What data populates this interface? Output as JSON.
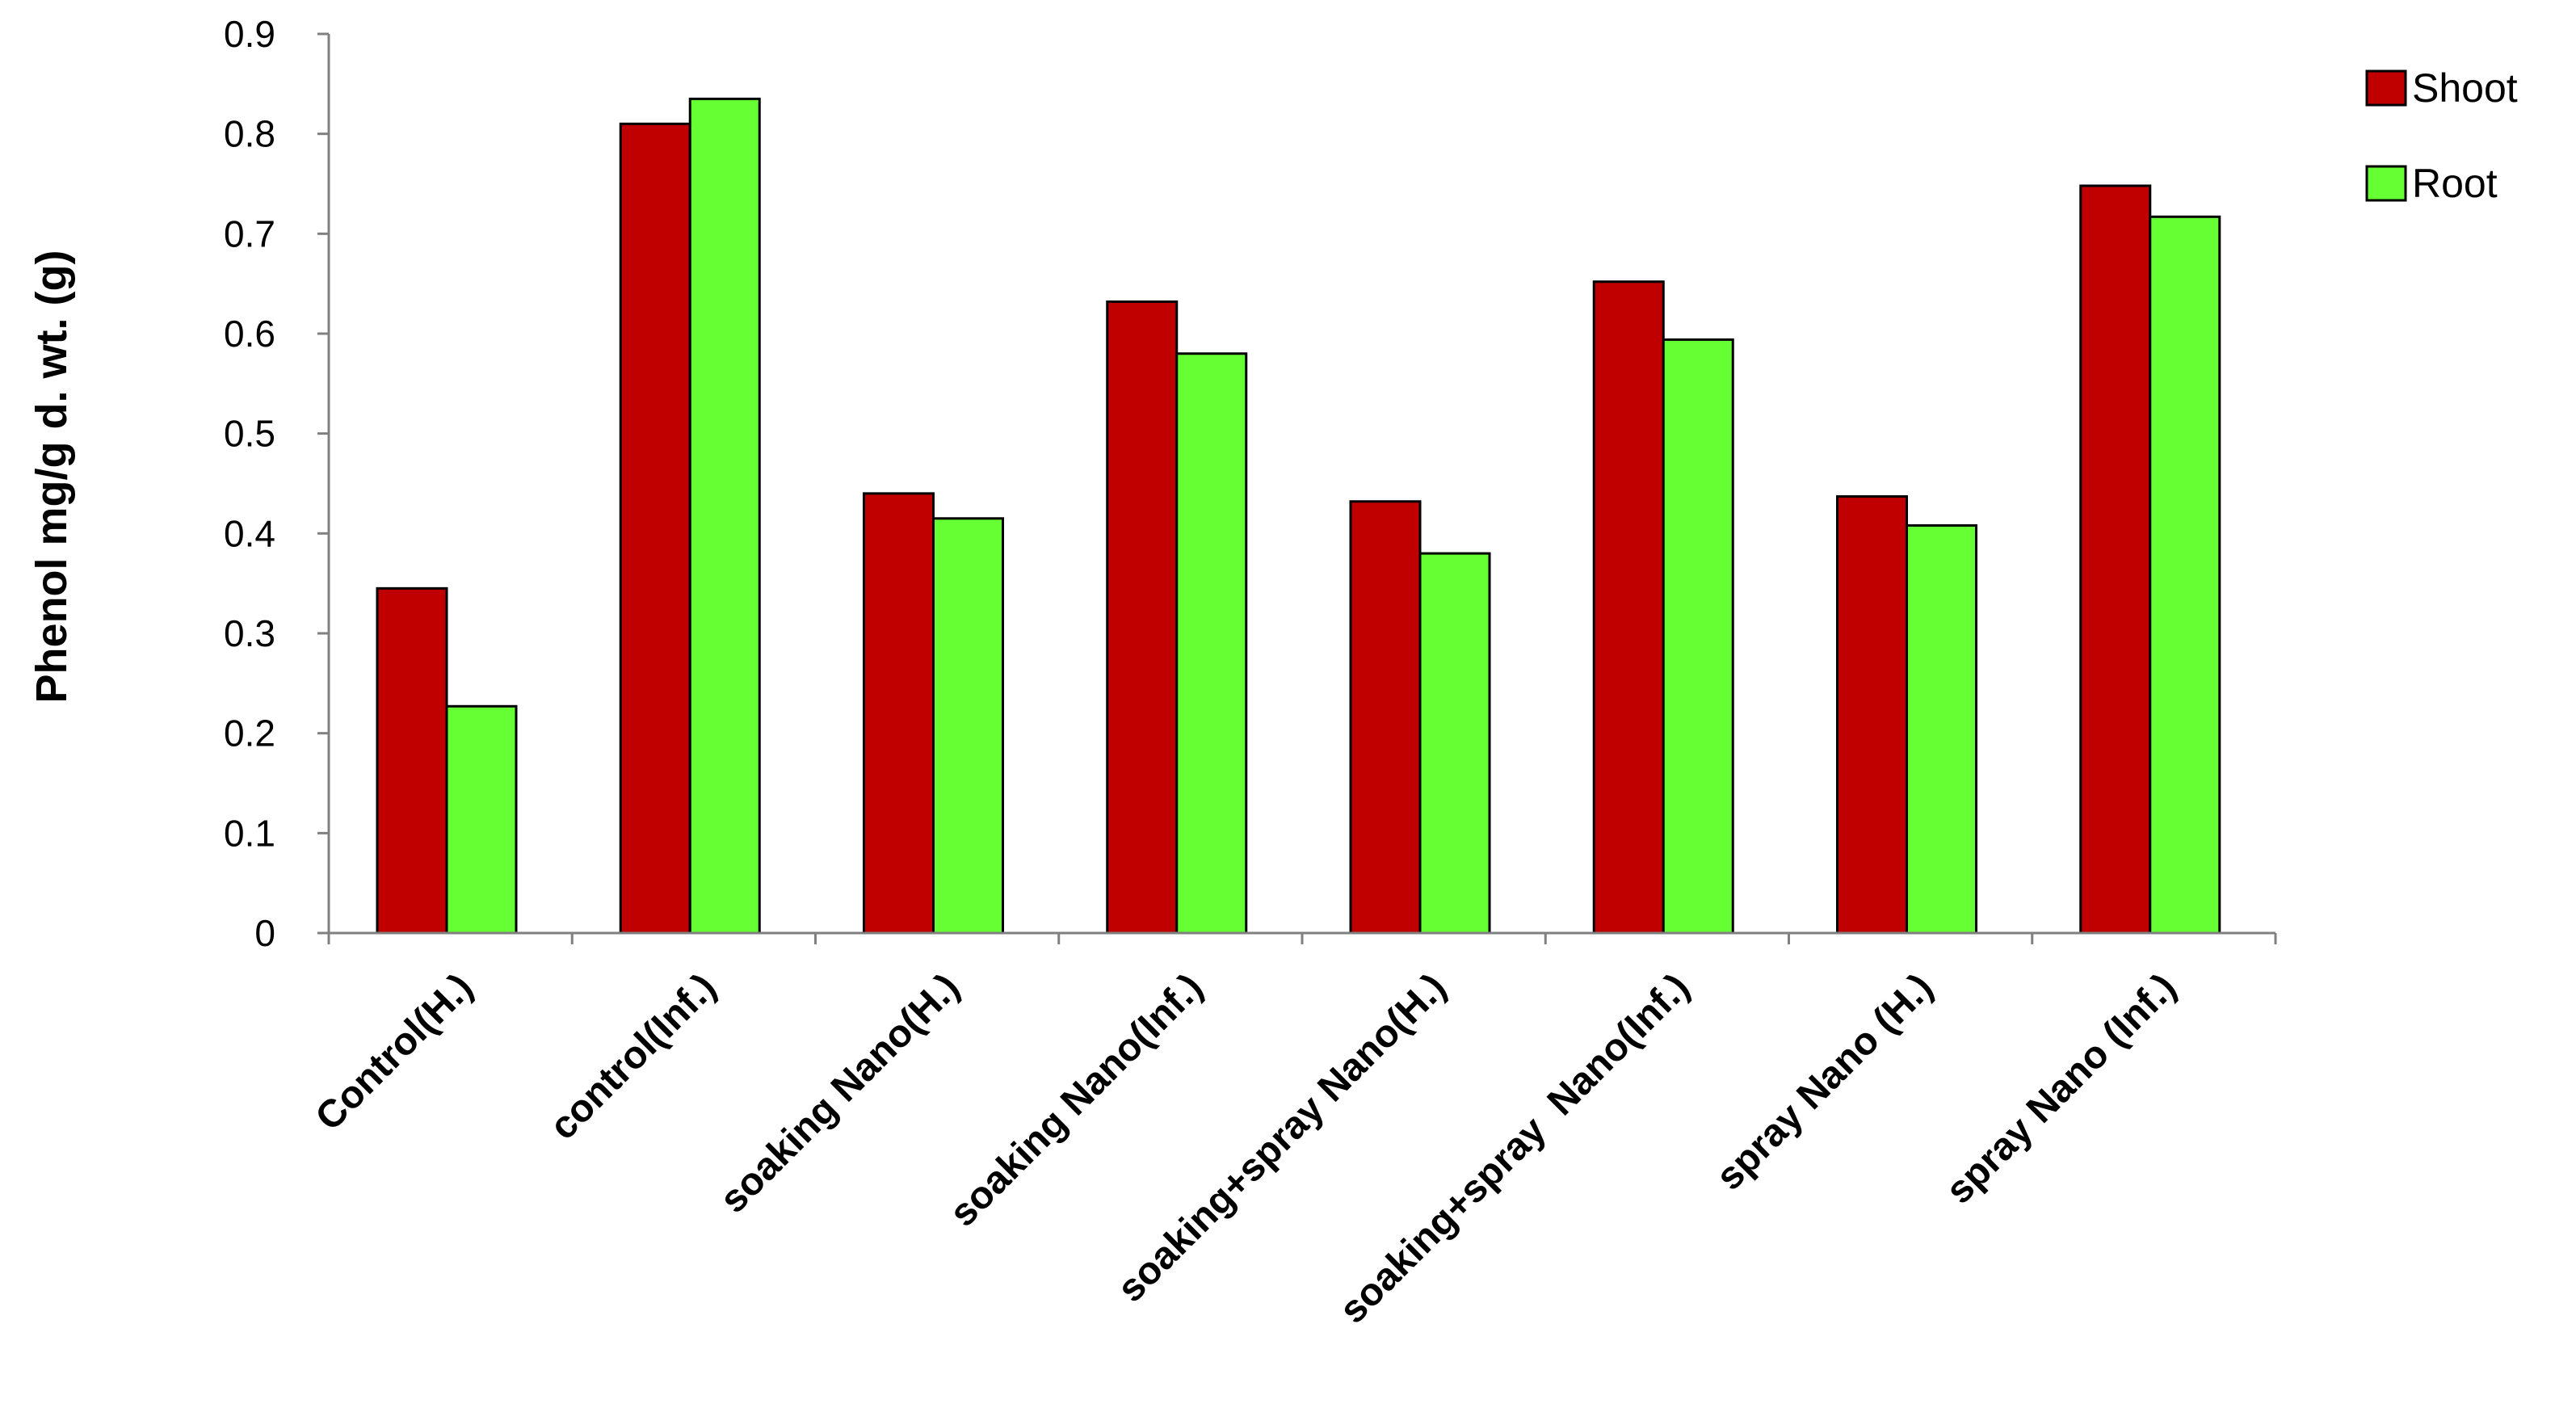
{
  "chart_data": {
    "type": "bar",
    "ylabel": "Phenol mg/g d. wt. (g)",
    "ylim": [
      0,
      0.9
    ],
    "yticks": [
      "0",
      "0.1",
      "0.2",
      "0.3",
      "0.4",
      "0.5",
      "0.6",
      "0.7",
      "0.8",
      "0.9"
    ],
    "grid": false,
    "legend_position": "top-right",
    "categories": [
      "Control(H.)",
      "control(Inf.)",
      "soaking Nano(H.)",
      "soaking Nano(Inf.)",
      "soaking+spray Nano(H.)",
      "soaking+spray  Nano(Inf.)",
      "spray Nano (H.)",
      "spray Nano (Inf.)"
    ],
    "series": [
      {
        "name": "Shoot",
        "color": "#c00000",
        "values": [
          0.345,
          0.81,
          0.44,
          0.632,
          0.432,
          0.652,
          0.437,
          0.748
        ]
      },
      {
        "name": "Root",
        "color": "#66ff33",
        "values": [
          0.227,
          0.835,
          0.415,
          0.58,
          0.38,
          0.594,
          0.408,
          0.717
        ]
      }
    ]
  }
}
